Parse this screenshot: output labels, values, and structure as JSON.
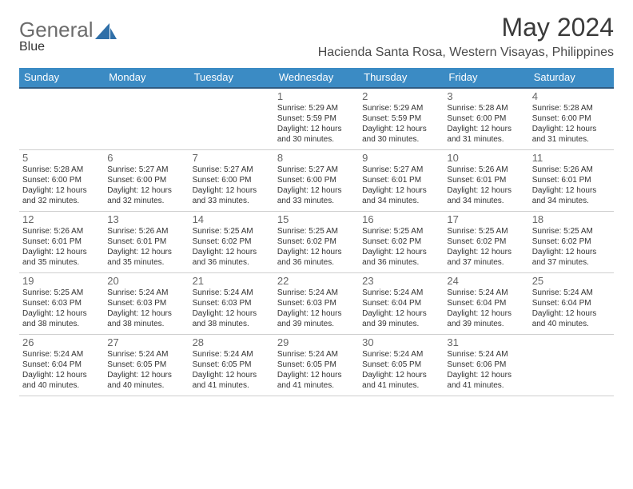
{
  "brand": {
    "word1": "General",
    "word2": "Blue"
  },
  "header": {
    "monthTitle": "May 2024",
    "location": "Hacienda Santa Rosa, Western Visayas, Philippines"
  },
  "colors": {
    "headerBlue": "#3b8bc4",
    "hrDark": "#2e5b82",
    "hrLight": "#cfcfcf",
    "logoGray": "#6c6c6c",
    "logoBlue": "#2f6fa8"
  },
  "dayNames": [
    "Sunday",
    "Monday",
    "Tuesday",
    "Wednesday",
    "Thursday",
    "Friday",
    "Saturday"
  ],
  "weeks": [
    [
      null,
      null,
      null,
      {
        "n": "1",
        "sr": "5:29 AM",
        "ss": "5:59 PM",
        "dl": "12 hours and 30 minutes."
      },
      {
        "n": "2",
        "sr": "5:29 AM",
        "ss": "5:59 PM",
        "dl": "12 hours and 30 minutes."
      },
      {
        "n": "3",
        "sr": "5:28 AM",
        "ss": "6:00 PM",
        "dl": "12 hours and 31 minutes."
      },
      {
        "n": "4",
        "sr": "5:28 AM",
        "ss": "6:00 PM",
        "dl": "12 hours and 31 minutes."
      }
    ],
    [
      {
        "n": "5",
        "sr": "5:28 AM",
        "ss": "6:00 PM",
        "dl": "12 hours and 32 minutes."
      },
      {
        "n": "6",
        "sr": "5:27 AM",
        "ss": "6:00 PM",
        "dl": "12 hours and 32 minutes."
      },
      {
        "n": "7",
        "sr": "5:27 AM",
        "ss": "6:00 PM",
        "dl": "12 hours and 33 minutes."
      },
      {
        "n": "8",
        "sr": "5:27 AM",
        "ss": "6:00 PM",
        "dl": "12 hours and 33 minutes."
      },
      {
        "n": "9",
        "sr": "5:27 AM",
        "ss": "6:01 PM",
        "dl": "12 hours and 34 minutes."
      },
      {
        "n": "10",
        "sr": "5:26 AM",
        "ss": "6:01 PM",
        "dl": "12 hours and 34 minutes."
      },
      {
        "n": "11",
        "sr": "5:26 AM",
        "ss": "6:01 PM",
        "dl": "12 hours and 34 minutes."
      }
    ],
    [
      {
        "n": "12",
        "sr": "5:26 AM",
        "ss": "6:01 PM",
        "dl": "12 hours and 35 minutes."
      },
      {
        "n": "13",
        "sr": "5:26 AM",
        "ss": "6:01 PM",
        "dl": "12 hours and 35 minutes."
      },
      {
        "n": "14",
        "sr": "5:25 AM",
        "ss": "6:02 PM",
        "dl": "12 hours and 36 minutes."
      },
      {
        "n": "15",
        "sr": "5:25 AM",
        "ss": "6:02 PM",
        "dl": "12 hours and 36 minutes."
      },
      {
        "n": "16",
        "sr": "5:25 AM",
        "ss": "6:02 PM",
        "dl": "12 hours and 36 minutes."
      },
      {
        "n": "17",
        "sr": "5:25 AM",
        "ss": "6:02 PM",
        "dl": "12 hours and 37 minutes."
      },
      {
        "n": "18",
        "sr": "5:25 AM",
        "ss": "6:02 PM",
        "dl": "12 hours and 37 minutes."
      }
    ],
    [
      {
        "n": "19",
        "sr": "5:25 AM",
        "ss": "6:03 PM",
        "dl": "12 hours and 38 minutes."
      },
      {
        "n": "20",
        "sr": "5:24 AM",
        "ss": "6:03 PM",
        "dl": "12 hours and 38 minutes."
      },
      {
        "n": "21",
        "sr": "5:24 AM",
        "ss": "6:03 PM",
        "dl": "12 hours and 38 minutes."
      },
      {
        "n": "22",
        "sr": "5:24 AM",
        "ss": "6:03 PM",
        "dl": "12 hours and 39 minutes."
      },
      {
        "n": "23",
        "sr": "5:24 AM",
        "ss": "6:04 PM",
        "dl": "12 hours and 39 minutes."
      },
      {
        "n": "24",
        "sr": "5:24 AM",
        "ss": "6:04 PM",
        "dl": "12 hours and 39 minutes."
      },
      {
        "n": "25",
        "sr": "5:24 AM",
        "ss": "6:04 PM",
        "dl": "12 hours and 40 minutes."
      }
    ],
    [
      {
        "n": "26",
        "sr": "5:24 AM",
        "ss": "6:04 PM",
        "dl": "12 hours and 40 minutes."
      },
      {
        "n": "27",
        "sr": "5:24 AM",
        "ss": "6:05 PM",
        "dl": "12 hours and 40 minutes."
      },
      {
        "n": "28",
        "sr": "5:24 AM",
        "ss": "6:05 PM",
        "dl": "12 hours and 41 minutes."
      },
      {
        "n": "29",
        "sr": "5:24 AM",
        "ss": "6:05 PM",
        "dl": "12 hours and 41 minutes."
      },
      {
        "n": "30",
        "sr": "5:24 AM",
        "ss": "6:05 PM",
        "dl": "12 hours and 41 minutes."
      },
      {
        "n": "31",
        "sr": "5:24 AM",
        "ss": "6:06 PM",
        "dl": "12 hours and 41 minutes."
      },
      null
    ]
  ],
  "labels": {
    "sunrise": "Sunrise:",
    "sunset": "Sunset:",
    "daylight": "Daylight:"
  }
}
